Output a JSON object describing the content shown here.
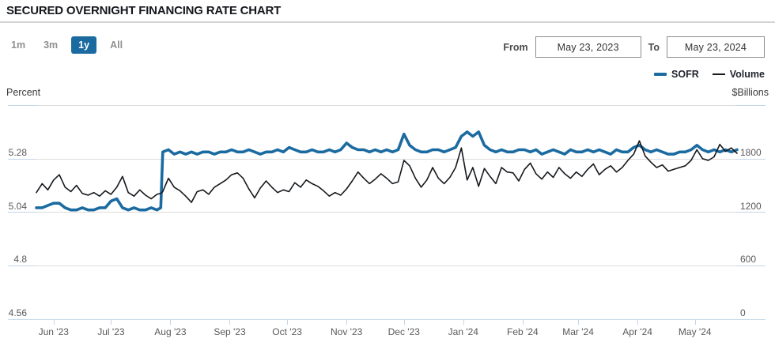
{
  "header": {
    "title": "SECURED OVERNIGHT FINANCING RATE CHART"
  },
  "controls": {
    "ranges": [
      {
        "label": "1m",
        "active": false
      },
      {
        "label": "3m",
        "active": false
      },
      {
        "label": "1y",
        "active": true
      },
      {
        "label": "All",
        "active": false
      }
    ],
    "from_label": "From",
    "from_value": "May 23, 2023",
    "to_label": "To",
    "to_value": "May 23, 2024"
  },
  "legend": [
    {
      "label": "SOFR",
      "color": "#1b6ba1"
    },
    {
      "label": "Volume",
      "color": "#15181c"
    }
  ],
  "colors": {
    "accent_blue": "#1b6ba1",
    "volume_black": "#15181c",
    "gridline_gray": "#dcdcdc",
    "axis_blue": "#c3d6e8",
    "tick_text": "#595959"
  },
  "chart_data": {
    "type": "line",
    "title": "SECURED OVERNIGHT FINANCING RATE CHART",
    "x_start_date": "May 23, 2023",
    "x_end_date": "May 23, 2024",
    "x_span_days": 366,
    "grid": true,
    "legend_position": "top-right",
    "x_ticks": [
      {
        "label": "Jun '23",
        "day": 9
      },
      {
        "label": "Jul '23",
        "day": 39
      },
      {
        "label": "Aug '23",
        "day": 70
      },
      {
        "label": "Sep '23",
        "day": 101
      },
      {
        "label": "Oct '23",
        "day": 131
      },
      {
        "label": "Nov '23",
        "day": 162
      },
      {
        "label": "Dec '23",
        "day": 192
      },
      {
        "label": "Jan '24",
        "day": 223
      },
      {
        "label": "Feb '24",
        "day": 254
      },
      {
        "label": "Mar '24",
        "day": 283
      },
      {
        "label": "Apr '24",
        "day": 314
      },
      {
        "label": "May '24",
        "day": 344
      }
    ],
    "left_axis": {
      "label": "Percent",
      "ticks": [
        5.28,
        5.04,
        4.8,
        4.56
      ],
      "range": [
        4.56,
        5.52
      ]
    },
    "right_axis": {
      "label": "$Billions",
      "ticks": [
        1800,
        1200,
        600,
        0
      ],
      "range": [
        0,
        2400
      ]
    },
    "x_days": [
      0,
      3,
      6,
      9,
      12,
      15,
      18,
      21,
      24,
      27,
      30,
      33,
      36,
      39,
      42,
      45,
      48,
      51,
      54,
      57,
      60,
      63,
      65,
      66,
      69,
      72,
      75,
      78,
      81,
      84,
      87,
      90,
      93,
      96,
      99,
      102,
      105,
      108,
      111,
      114,
      117,
      120,
      123,
      126,
      129,
      132,
      135,
      138,
      141,
      144,
      147,
      150,
      153,
      156,
      159,
      162,
      165,
      168,
      171,
      174,
      177,
      180,
      183,
      186,
      189,
      192,
      195,
      198,
      201,
      204,
      207,
      210,
      213,
      216,
      219,
      222,
      225,
      228,
      231,
      234,
      237,
      240,
      243,
      246,
      249,
      252,
      255,
      258,
      261,
      264,
      267,
      270,
      273,
      276,
      279,
      282,
      285,
      288,
      291,
      294,
      297,
      300,
      303,
      306,
      309,
      312,
      315,
      318,
      321,
      324,
      327,
      330,
      333,
      336,
      339,
      342,
      345,
      348,
      351,
      354,
      357,
      360,
      363,
      366
    ],
    "series": [
      {
        "name": "SOFR",
        "axis": "left",
        "unit": "percent",
        "color": "#1b6ba1",
        "stroke_width": 3.6,
        "values": [
          5.06,
          5.06,
          5.07,
          5.08,
          5.08,
          5.06,
          5.05,
          5.05,
          5.06,
          5.05,
          5.05,
          5.06,
          5.06,
          5.09,
          5.1,
          5.06,
          5.05,
          5.06,
          5.05,
          5.05,
          5.06,
          5.05,
          5.06,
          5.31,
          5.32,
          5.3,
          5.31,
          5.3,
          5.31,
          5.3,
          5.31,
          5.31,
          5.3,
          5.31,
          5.31,
          5.32,
          5.31,
          5.31,
          5.32,
          5.31,
          5.3,
          5.31,
          5.31,
          5.32,
          5.31,
          5.33,
          5.32,
          5.31,
          5.31,
          5.32,
          5.31,
          5.31,
          5.32,
          5.31,
          5.32,
          5.35,
          5.33,
          5.32,
          5.32,
          5.31,
          5.32,
          5.31,
          5.32,
          5.31,
          5.32,
          5.39,
          5.34,
          5.32,
          5.31,
          5.31,
          5.32,
          5.32,
          5.31,
          5.32,
          5.33,
          5.38,
          5.4,
          5.38,
          5.4,
          5.34,
          5.32,
          5.31,
          5.32,
          5.31,
          5.31,
          5.32,
          5.32,
          5.31,
          5.32,
          5.3,
          5.31,
          5.32,
          5.31,
          5.3,
          5.32,
          5.31,
          5.31,
          5.32,
          5.31,
          5.32,
          5.31,
          5.3,
          5.32,
          5.31,
          5.31,
          5.33,
          5.34,
          5.32,
          5.31,
          5.32,
          5.31,
          5.3,
          5.3,
          5.31,
          5.31,
          5.32,
          5.34,
          5.32,
          5.31,
          5.32,
          5.31,
          5.32,
          5.31,
          5.32
        ]
      },
      {
        "name": "Volume",
        "axis": "right",
        "unit": "billions_usd",
        "color": "#15181c",
        "stroke_width": 1.6,
        "values": [
          1420,
          1520,
          1450,
          1560,
          1620,
          1480,
          1430,
          1500,
          1410,
          1390,
          1420,
          1380,
          1440,
          1400,
          1480,
          1600,
          1420,
          1380,
          1450,
          1390,
          1350,
          1400,
          1410,
          1430,
          1580,
          1480,
          1440,
          1380,
          1310,
          1430,
          1450,
          1400,
          1480,
          1520,
          1560,
          1620,
          1640,
          1580,
          1460,
          1360,
          1470,
          1550,
          1480,
          1420,
          1450,
          1430,
          1530,
          1480,
          1560,
          1520,
          1490,
          1440,
          1380,
          1420,
          1390,
          1460,
          1550,
          1650,
          1580,
          1520,
          1570,
          1630,
          1580,
          1520,
          1540,
          1780,
          1720,
          1580,
          1480,
          1560,
          1700,
          1580,
          1520,
          1590,
          1700,
          1920,
          1560,
          1700,
          1490,
          1690,
          1600,
          1520,
          1700,
          1650,
          1640,
          1550,
          1680,
          1750,
          1630,
          1570,
          1650,
          1590,
          1700,
          1630,
          1580,
          1650,
          1600,
          1680,
          1740,
          1620,
          1680,
          1720,
          1650,
          1700,
          1780,
          1850,
          2000,
          1830,
          1760,
          1700,
          1730,
          1660,
          1680,
          1700,
          1720,
          1780,
          1900,
          1800,
          1780,
          1820,
          1960,
          1880,
          1920,
          1860
        ]
      }
    ]
  }
}
